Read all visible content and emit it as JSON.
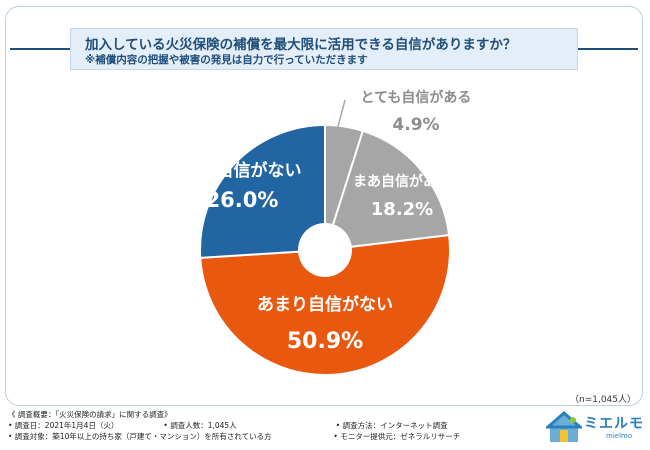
{
  "title": "加入している火災保険の補償を最大限に活用できる自信がありますか？",
  "subtitle": "※補償内容の把握や被害の発見は自力で行っていただきます",
  "sample_note": "（n=1,045人）",
  "chart_data": {
    "type": "pie",
    "title": "加入している火災保険の補償を最大限に活用できる自信がありますか？",
    "slices": [
      {
        "label": "とても自信がある",
        "value": 4.9,
        "display": "4.9%",
        "color": "#a6a6a6"
      },
      {
        "label": "まあ自信がある",
        "value": 18.2,
        "display": "18.2%",
        "color": "#a6a6a6"
      },
      {
        "label": "あまり自信がない",
        "value": 50.9,
        "display": "50.9%",
        "color": "#e8580f"
      },
      {
        "label": "全く自信がない",
        "value": 26.0,
        "display": "26.0%",
        "color": "#2265a3"
      }
    ]
  },
  "footer": {
    "heading": "《 調査概要：「火災保険の請求」に関する調査》",
    "date": "• 調査日：2021年1月4日（火）",
    "count": "• 調査人数：1,045人",
    "method": "• 調査方法：インターネット調査",
    "target": "• 調査対象：築10年以上の持ち家（戸建て・マンション）を所有されている方",
    "provider": "• モニター提供元：ゼネラルリサーチ"
  },
  "logo": {
    "name": "ミエルモ",
    "sub": "mielmo"
  }
}
